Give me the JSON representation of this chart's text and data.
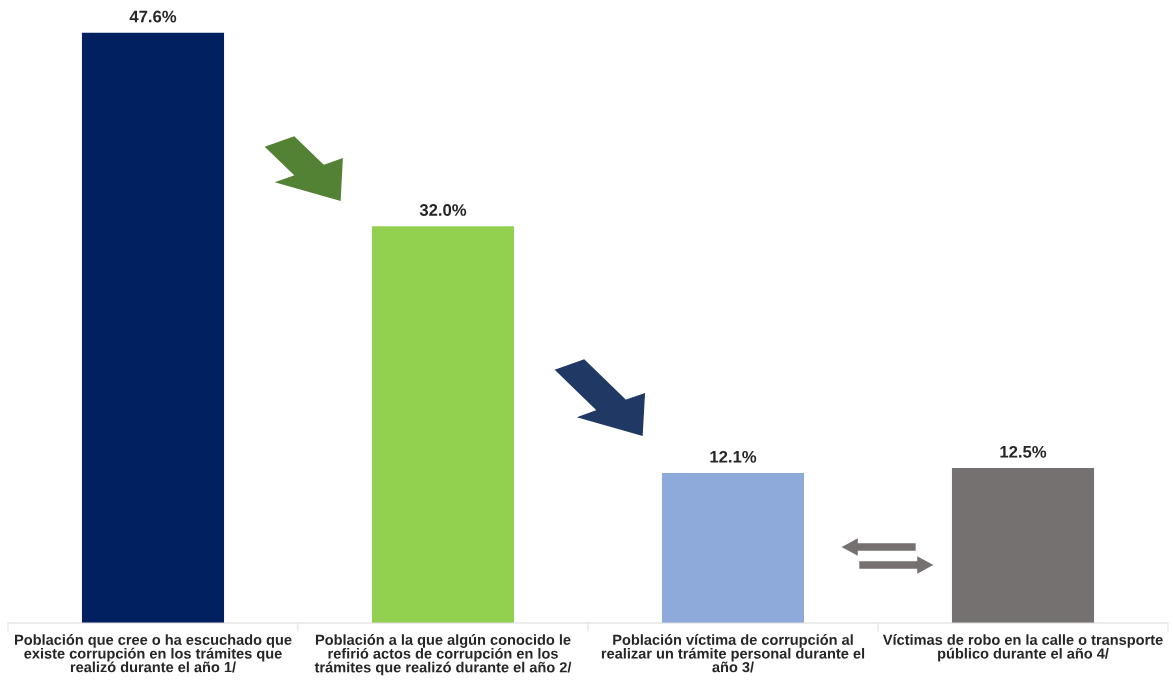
{
  "chart_data": {
    "type": "bar",
    "categories": [
      "Población que cree o ha escuchado que\nexiste corrupción en los trámites que\nrealizó durante el año 1/",
      "Población a la que algún conocido le\nrefirió actos de corrupción en los\ntrámites que realizó durante el año 2/",
      "Población víctima de corrupción al\nrealizar un trámite personal durante el\naño 3/",
      "Víctimas de robo en la calle o transporte\npúblico durante el año 4/"
    ],
    "values": [
      47.6,
      32.0,
      12.1,
      12.5
    ],
    "colors": [
      "#002060",
      "#92d050",
      "#8eaadb",
      "#767171"
    ],
    "value_labels": [
      "47.6%",
      "32.0%",
      "12.1%",
      "12.5%"
    ],
    "grid": false,
    "legend": false
  }
}
